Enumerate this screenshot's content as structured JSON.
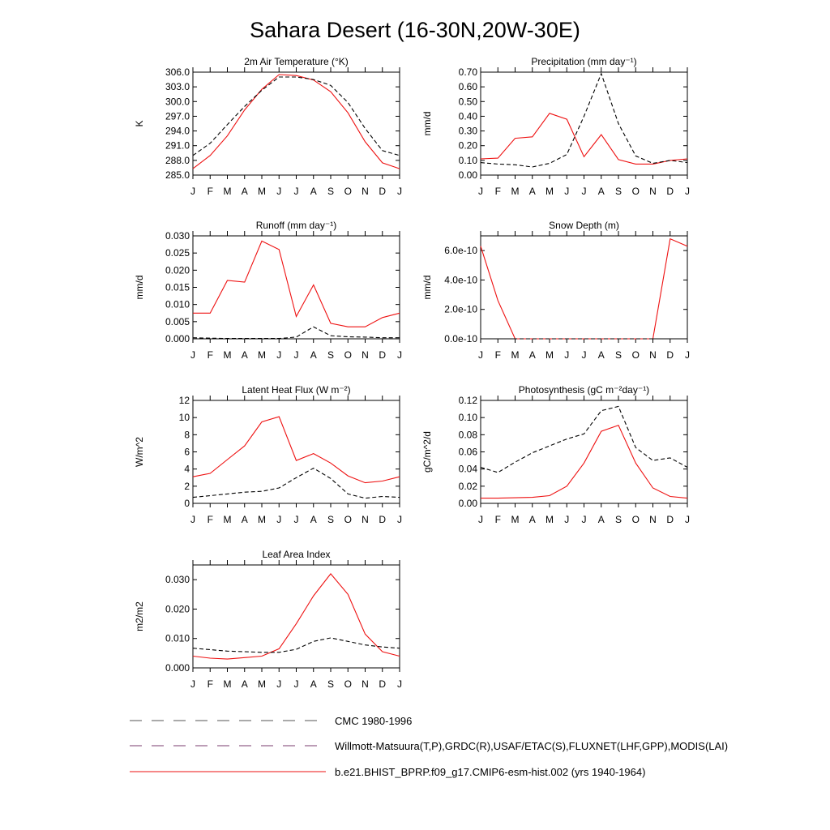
{
  "title": "Sahara Desert (16-30N,20W-30E)",
  "months": [
    "J",
    "F",
    "M",
    "A",
    "M",
    "J",
    "J",
    "A",
    "S",
    "O",
    "N",
    "D",
    "J"
  ],
  "colors": {
    "model": "#ee1111",
    "obs": "#000000"
  },
  "legend": [
    {
      "style": "dash-gray",
      "label": "CMC 1980-1996"
    },
    {
      "style": "dash-multi",
      "label": "Willmott-Matsuura(T,P),GRDC(R),USAF/ETAC(S),FLUXNET(LHF,GPP),MODIS(LAI)"
    },
    {
      "style": "solid-red",
      "label": "b.e21.BHIST_BPRP.f09_g17.CMIP6-esm-hist.002 (yrs 1940-1964)"
    }
  ],
  "chart_data": [
    {
      "type": "line",
      "title": "2m Air Temperature (°K)",
      "ylabel": "K",
      "ylim": [
        285.0,
        306.0
      ],
      "yticks": [
        "285.0",
        "288.0",
        "291.0",
        "294.0",
        "297.0",
        "300.0",
        "303.0",
        "306.0"
      ],
      "x": [
        "J",
        "F",
        "M",
        "A",
        "M",
        "J",
        "J",
        "A",
        "S",
        "O",
        "N",
        "D",
        "J"
      ],
      "series": [
        {
          "role": "model",
          "values": [
            286.3,
            289.0,
            293.0,
            298.3,
            302.5,
            305.5,
            305.3,
            304.4,
            302.0,
            297.7,
            291.8,
            287.5,
            286.3
          ]
        },
        {
          "role": "obs",
          "values": [
            289.0,
            291.5,
            295.3,
            299.0,
            302.3,
            305.0,
            305.0,
            304.5,
            303.3,
            299.8,
            294.5,
            290.0,
            289.0
          ]
        }
      ]
    },
    {
      "type": "line",
      "title": "Precipitation (mm day⁻¹)",
      "ylabel": "mm/d",
      "ylim": [
        0.0,
        0.7
      ],
      "yticks": [
        "0.00",
        "0.10",
        "0.20",
        "0.30",
        "0.40",
        "0.50",
        "0.60",
        "0.70"
      ],
      "x": [
        "J",
        "F",
        "M",
        "A",
        "M",
        "J",
        "J",
        "A",
        "S",
        "O",
        "N",
        "D",
        "J"
      ],
      "series": [
        {
          "role": "model",
          "values": [
            0.11,
            0.115,
            0.25,
            0.26,
            0.42,
            0.38,
            0.125,
            0.275,
            0.105,
            0.075,
            0.075,
            0.1,
            0.11
          ]
        },
        {
          "role": "obs",
          "values": [
            0.085,
            0.075,
            0.07,
            0.055,
            0.08,
            0.14,
            0.4,
            0.69,
            0.35,
            0.13,
            0.08,
            0.1,
            0.085
          ]
        }
      ]
    },
    {
      "type": "line",
      "title": "Runoff (mm day⁻¹)",
      "ylabel": "mm/d",
      "ylim": [
        0.0,
        0.03
      ],
      "yticks": [
        "0.000",
        "0.005",
        "0.010",
        "0.015",
        "0.020",
        "0.025",
        "0.030"
      ],
      "x": [
        "J",
        "F",
        "M",
        "A",
        "M",
        "J",
        "J",
        "A",
        "S",
        "O",
        "N",
        "D",
        "J"
      ],
      "series": [
        {
          "role": "model",
          "values": [
            0.0075,
            0.0075,
            0.017,
            0.0165,
            0.0285,
            0.026,
            0.0065,
            0.0157,
            0.0045,
            0.0035,
            0.0035,
            0.0062,
            0.0075
          ]
        },
        {
          "role": "obs",
          "values": [
            0.0003,
            0.0002,
            0.0001,
            0.0001,
            0.0001,
            0.0001,
            0.0005,
            0.0035,
            0.0009,
            0.0006,
            0.0005,
            0.0003,
            0.0003
          ]
        }
      ]
    },
    {
      "type": "line",
      "title": "Snow Depth (m)",
      "ylabel": "mm/d",
      "ylim": [
        0.0,
        7e-10
      ],
      "yticks": [
        "0.0e-10",
        "2.0e-10",
        "4.0e-10",
        "6.0e-10"
      ],
      "x": [
        "J",
        "F",
        "M",
        "A",
        "M",
        "J",
        "J",
        "A",
        "S",
        "O",
        "N",
        "D",
        "J"
      ],
      "series": [
        {
          "role": "model",
          "values": [
            6.3e-10,
            2.6e-10,
            0,
            0,
            0,
            0,
            0,
            0,
            0,
            0,
            0,
            6.8e-10,
            6.3e-10
          ]
        },
        {
          "role": "obs",
          "values": [
            0,
            0,
            0,
            0,
            0,
            0,
            0,
            0,
            0,
            0,
            0,
            0,
            0
          ]
        }
      ]
    },
    {
      "type": "line",
      "title": "Latent Heat Flux (W m⁻²)",
      "ylabel": "W/m^2",
      "ylim": [
        0,
        12
      ],
      "yticks": [
        "0",
        "2",
        "4",
        "6",
        "8",
        "10",
        "12"
      ],
      "x": [
        "J",
        "F",
        "M",
        "A",
        "M",
        "J",
        "J",
        "A",
        "S",
        "O",
        "N",
        "D",
        "J"
      ],
      "series": [
        {
          "role": "model",
          "values": [
            3.1,
            3.5,
            5.1,
            6.7,
            9.5,
            10.1,
            5.0,
            5.8,
            4.7,
            3.2,
            2.4,
            2.6,
            3.1
          ]
        },
        {
          "role": "obs",
          "values": [
            0.7,
            0.9,
            1.1,
            1.3,
            1.4,
            1.8,
            3.0,
            4.1,
            2.9,
            1.1,
            0.6,
            0.8,
            0.7
          ]
        }
      ]
    },
    {
      "type": "line",
      "title": "Photosynthesis (gC m⁻²day⁻¹)",
      "ylabel": "gC/m^2/d",
      "ylim": [
        0.0,
        0.12
      ],
      "yticks": [
        "0.00",
        "0.02",
        "0.04",
        "0.06",
        "0.08",
        "0.10",
        "0.12"
      ],
      "x": [
        "J",
        "F",
        "M",
        "A",
        "M",
        "J",
        "J",
        "A",
        "S",
        "O",
        "N",
        "D",
        "J"
      ],
      "series": [
        {
          "role": "model",
          "values": [
            0.006,
            0.006,
            0.0065,
            0.007,
            0.009,
            0.02,
            0.047,
            0.084,
            0.091,
            0.047,
            0.018,
            0.008,
            0.006
          ]
        },
        {
          "role": "obs",
          "values": [
            0.042,
            0.036,
            0.048,
            0.059,
            0.067,
            0.075,
            0.081,
            0.108,
            0.113,
            0.065,
            0.05,
            0.053,
            0.042
          ]
        }
      ]
    },
    {
      "type": "line",
      "title": "Leaf Area Index",
      "ylabel": "m2/m2",
      "ylim": [
        0.0,
        0.035
      ],
      "yticks": [
        "0.000",
        "0.010",
        "0.020",
        "0.030"
      ],
      "x": [
        "J",
        "F",
        "M",
        "A",
        "M",
        "J",
        "J",
        "A",
        "S",
        "O",
        "N",
        "D",
        "J"
      ],
      "series": [
        {
          "role": "model",
          "values": [
            0.004,
            0.0033,
            0.003,
            0.0035,
            0.004,
            0.0065,
            0.015,
            0.0245,
            0.032,
            0.025,
            0.0115,
            0.0055,
            0.004
          ]
        },
        {
          "role": "obs",
          "values": [
            0.0067,
            0.0062,
            0.0057,
            0.0055,
            0.0053,
            0.0053,
            0.0063,
            0.009,
            0.0102,
            0.009,
            0.0078,
            0.0071,
            0.0067
          ]
        }
      ]
    }
  ]
}
